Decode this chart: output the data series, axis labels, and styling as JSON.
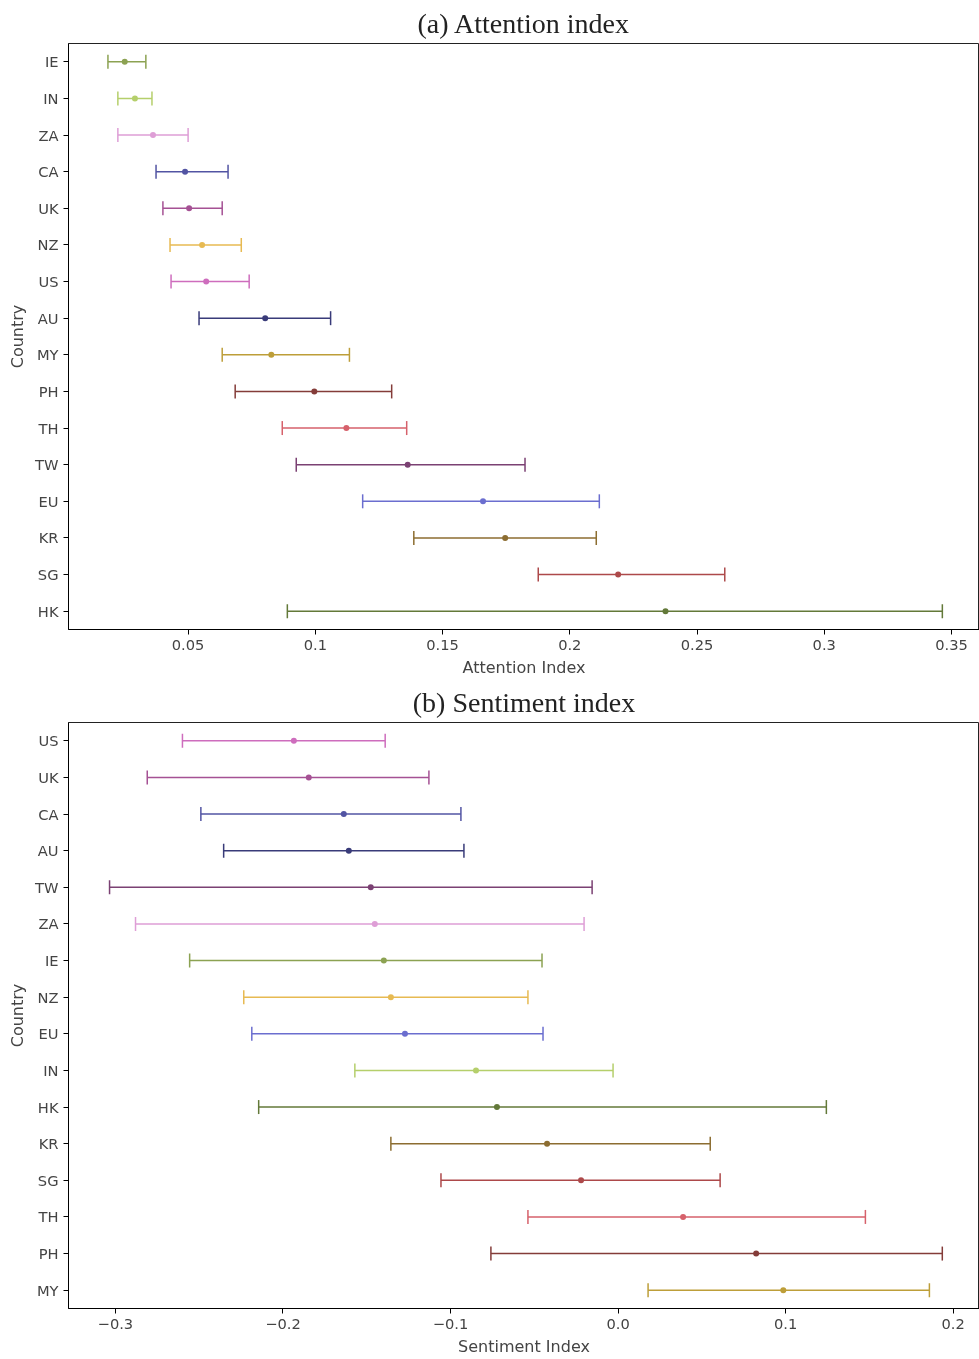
{
  "chart_data": [
    {
      "type": "scatter",
      "orientation": "horizontal",
      "title": "(a) Attention index",
      "xlabel": "Attention Index",
      "ylabel": "Country",
      "marker": "circle",
      "grid": false,
      "categories": [
        "IE",
        "IN",
        "ZA",
        "CA",
        "UK",
        "NZ",
        "US",
        "AU",
        "MY",
        "PH",
        "TH",
        "TW",
        "EU",
        "KR",
        "SG",
        "HK"
      ],
      "values": [
        0.0251,
        0.0291,
        0.0362,
        0.0488,
        0.0504,
        0.0555,
        0.0571,
        0.0803,
        0.0827,
        0.0996,
        0.1122,
        0.1363,
        0.1659,
        0.1746,
        0.219,
        0.2376
      ],
      "errors": [
        [
          0.0185,
          0.0334
        ],
        [
          0.0224,
          0.0358
        ],
        [
          0.0224,
          0.05
        ],
        [
          0.0374,
          0.0657
        ],
        [
          0.0401,
          0.0634
        ],
        [
          0.0429,
          0.0709
        ],
        [
          0.0433,
          0.074
        ],
        [
          0.0543,
          0.106
        ],
        [
          0.0634,
          0.1134
        ],
        [
          0.0685,
          0.13
        ],
        [
          0.087,
          0.1359
        ],
        [
          0.0925,
          0.1824
        ],
        [
          0.1186,
          0.2116
        ],
        [
          0.1387,
          0.2104
        ],
        [
          0.1876,
          0.2609
        ],
        [
          0.089,
          0.3464
        ]
      ],
      "colors": [
        "#8ca252",
        "#b5cf6b",
        "#de9ed6",
        "#5254a3",
        "#a55194",
        "#e7ba52",
        "#ce6dbd",
        "#393b79",
        "#bd9e39",
        "#843c39",
        "#d6616b",
        "#7b4173",
        "#6b6ecf",
        "#8c6d31",
        "#ad494a",
        "#637939"
      ],
      "xlim": [
        0.003,
        0.361
      ],
      "xticks": [
        0.05,
        0.1,
        0.15,
        0.2,
        0.25,
        0.3,
        0.35
      ]
    },
    {
      "type": "scatter",
      "orientation": "horizontal",
      "title": "(b) Sentiment index",
      "xlabel": "Sentiment Index",
      "ylabel": "Country",
      "marker": "circle",
      "grid": false,
      "categories": [
        "US",
        "UK",
        "CA",
        "AU",
        "TW",
        "ZA",
        "IE",
        "NZ",
        "EU",
        "IN",
        "HK",
        "KR",
        "SG",
        "TH",
        "PH",
        "MY"
      ],
      "values": [
        -0.1935,
        -0.1846,
        -0.1637,
        -0.1607,
        -0.1476,
        -0.1452,
        -0.1398,
        -0.1356,
        -0.1272,
        -0.0848,
        -0.0723,
        -0.0424,
        -0.0221,
        0.0388,
        0.0824,
        0.0986
      ],
      "errors": [
        [
          -0.26,
          -0.139
        ],
        [
          -0.281,
          -0.1129
        ],
        [
          -0.249,
          -0.0938
        ],
        [
          -0.2354,
          -0.092
        ],
        [
          -0.3035,
          -0.0155
        ],
        [
          -0.288,
          -0.0203
        ],
        [
          -0.2557,
          -0.0454
        ],
        [
          -0.2234,
          -0.0538
        ],
        [
          -0.2186,
          -0.0448
        ],
        [
          -0.1571,
          -0.003
        ],
        [
          -0.2145,
          0.1243
        ],
        [
          -0.1356,
          0.055
        ],
        [
          -0.1057,
          0.0609
        ],
        [
          -0.0538,
          0.1476
        ],
        [
          -0.0759,
          0.1935
        ],
        [
          0.0179,
          0.1858
        ]
      ],
      "colors": [
        "#ce6dbd",
        "#a55194",
        "#5254a3",
        "#393b79",
        "#7b4173",
        "#de9ed6",
        "#8ca252",
        "#e7ba52",
        "#6b6ecf",
        "#b5cf6b",
        "#637939",
        "#8c6d31",
        "#ad494a",
        "#d6616b",
        "#843c39",
        "#bd9e39"
      ],
      "xlim": [
        -0.328,
        0.2157
      ],
      "xticks": [
        {
          "value": -0.3,
          "label": "−0.3"
        },
        {
          "value": -0.2,
          "label": "−0.2"
        },
        {
          "value": -0.1,
          "label": "−0.1"
        },
        {
          "value": 0,
          "label": "0.0"
        },
        {
          "value": 0.1,
          "label": "0.1"
        },
        {
          "value": 0.2,
          "label": "0.2"
        }
      ]
    }
  ]
}
